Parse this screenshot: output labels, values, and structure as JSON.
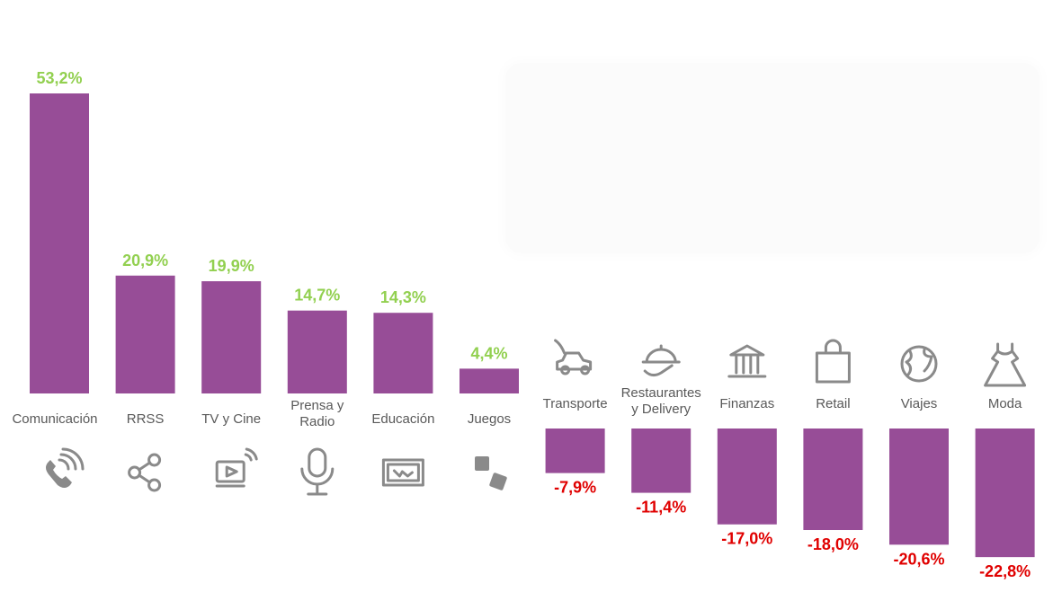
{
  "colors": {
    "bar": "#974d97",
    "positive_label": "#92d050",
    "negative_label": "#e00000",
    "category_label": "#595959",
    "icon": "#8a8a8a"
  },
  "chart_data": {
    "type": "bar",
    "title": "",
    "xlabel": "",
    "ylabel": "",
    "grid": false,
    "categories": [
      "Comunicación",
      "RRSS",
      "TV y Cine",
      "Prensa y Radio",
      "Educación",
      "Juegos",
      "Transporte",
      "Restaurantes y Delivery",
      "Finanzas",
      "Retail",
      "Viajes",
      "Moda"
    ],
    "values": [
      53.2,
      20.9,
      19.9,
      14.7,
      14.3,
      4.4,
      -7.9,
      -11.4,
      -17.0,
      -18.0,
      -20.6,
      -22.8
    ],
    "value_labels": [
      "53,2%",
      "20,9%",
      "19,9%",
      "14,7%",
      "14,3%",
      "4,4%",
      "-7,9%",
      "-11,4%",
      "-17,0%",
      "-18,0%",
      "-20,6%",
      "-22,8%"
    ],
    "icons": [
      "phone-icon",
      "share-icon",
      "video-stream-icon",
      "microphone-icon",
      "blackboard-icon",
      "dice-icon",
      "car-icon",
      "food-tray-icon",
      "bank-icon",
      "shopping-bag-icon",
      "globe-icon",
      "dress-icon"
    ]
  }
}
